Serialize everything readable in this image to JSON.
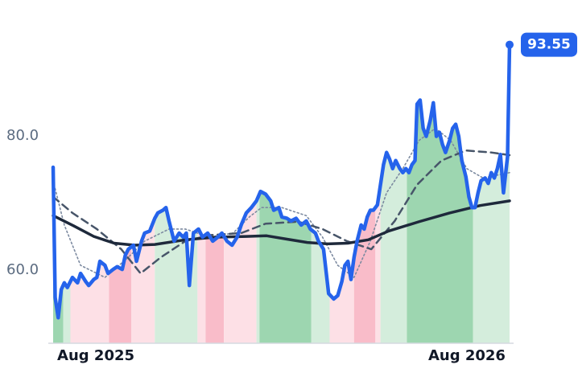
{
  "chart_data": {
    "type": "line",
    "xlim": [
      0,
      449
    ],
    "ylim": [
      49.1,
      100.2
    ],
    "xticks": [
      {
        "value": 42,
        "label": "Aug 2025"
      },
      {
        "value": 407,
        "label": "Aug 2026"
      }
    ],
    "yticks": [
      {
        "value": 60,
        "label": "60.0"
      },
      {
        "value": 80,
        "label": "80.0"
      }
    ],
    "last_value_label": "93.55",
    "bands": [
      {
        "x": [
          0,
          10
        ],
        "color": "#9dd6b0"
      },
      {
        "x": [
          10,
          17
        ],
        "color": "#d4eddc"
      },
      {
        "x": [
          17,
          55
        ],
        "color": "#fde0e6"
      },
      {
        "x": [
          55,
          77
        ],
        "color": "#f9bcc9"
      },
      {
        "x": [
          77,
          100
        ],
        "color": "#fde0e6"
      },
      {
        "x": [
          100,
          142
        ],
        "color": "#d4eddc"
      },
      {
        "x": [
          142,
          150
        ],
        "color": "#fde0e6"
      },
      {
        "x": [
          150,
          168
        ],
        "color": "#f9bcc9"
      },
      {
        "x": [
          168,
          200
        ],
        "color": "#fde0e6"
      },
      {
        "x": [
          200,
          203
        ],
        "color": "#d4eddc"
      },
      {
        "x": [
          203,
          254
        ],
        "color": "#9dd6b0"
      },
      {
        "x": [
          254,
          272
        ],
        "color": "#d4eddc"
      },
      {
        "x": [
          272,
          296
        ],
        "color": "#fde0e6"
      },
      {
        "x": [
          296,
          317
        ],
        "color": "#f9bcc9"
      },
      {
        "x": [
          317,
          322
        ],
        "color": "#fde0e6"
      },
      {
        "x": [
          322,
          348
        ],
        "color": "#d4eddc"
      },
      {
        "x": [
          348,
          413
        ],
        "color": "#9dd6b0"
      },
      {
        "x": [
          413,
          449
        ],
        "color": "#d4eddc"
      }
    ],
    "series": [
      {
        "color": "#2563eb",
        "style": "thick",
        "x": [
          0,
          2,
          5,
          8,
          11,
          14,
          19,
          24,
          27,
          32,
          35,
          40,
          43,
          46,
          51,
          54,
          59,
          63,
          68,
          71,
          74,
          79,
          82,
          87,
          90,
          95,
          100,
          103,
          108,
          111,
          114,
          119,
          124,
          128,
          131,
          134,
          138,
          143,
          147,
          152,
          157,
          162,
          166,
          171,
          176,
          181,
          185,
          190,
          195,
          200,
          204,
          209,
          214,
          217,
          222,
          225,
          230,
          234,
          239,
          244,
          249,
          253,
          258,
          261,
          266,
          271,
          276,
          280,
          284,
          287,
          290,
          293,
          296,
          299,
          303,
          306,
          309,
          312,
          315,
          319,
          322,
          325,
          328,
          331,
          334,
          337,
          341,
          344,
          347,
          350,
          353,
          356,
          358,
          361,
          364,
          367,
          371,
          374,
          377,
          380,
          383,
          386,
          390,
          393,
          396,
          399,
          402,
          406,
          409,
          412,
          415,
          418,
          421,
          425,
          428,
          431,
          434,
          437,
          440,
          443,
          447,
          449
        ],
        "values": [
          75.3,
          55.9,
          52.9,
          57.1,
          58.1,
          57.4,
          58.9,
          58.1,
          59.5,
          58.3,
          57.7,
          58.6,
          58.9,
          61.3,
          60.7,
          59.5,
          60.1,
          60.5,
          60.1,
          62.2,
          63.1,
          63.7,
          61.3,
          64.3,
          65.5,
          65.8,
          67.7,
          68.5,
          68.9,
          69.3,
          67.3,
          64.3,
          65.5,
          64.9,
          65.5,
          57.7,
          65.5,
          66.1,
          64.9,
          65.5,
          64.3,
          64.9,
          65.5,
          64.3,
          63.7,
          64.9,
          66.7,
          68.5,
          69.3,
          70.3,
          71.7,
          71.3,
          70.3,
          68.9,
          69.3,
          67.9,
          67.7,
          67.3,
          67.7,
          66.7,
          67.3,
          66.1,
          65.5,
          64.3,
          63.1,
          56.5,
          55.7,
          56.2,
          58.3,
          60.7,
          61.3,
          58.6,
          61.9,
          64.3,
          66.7,
          66.1,
          67.9,
          68.9,
          68.9,
          69.7,
          72.7,
          75.7,
          77.5,
          76.5,
          75.1,
          76.3,
          75.1,
          74.5,
          75.1,
          74.5,
          75.7,
          76.3,
          84.7,
          85.3,
          81.1,
          79.9,
          82.3,
          84.9,
          79.9,
          80.5,
          78.7,
          77.5,
          79.3,
          81.1,
          81.7,
          79.9,
          76.3,
          73.9,
          70.9,
          69.3,
          69.3,
          71.5,
          73.3,
          73.7,
          72.9,
          74.5,
          73.7,
          75.1,
          77.2,
          71.5,
          76.9,
          93.55
        ]
      },
      {
        "color": "#1e293b",
        "style": "solid",
        "x": [
          0,
          20,
          40,
          60,
          80,
          100,
          130,
          160,
          190,
          210,
          230,
          250,
          270,
          290,
          310,
          330,
          360,
          390,
          420,
          449
        ],
        "values": [
          68.1,
          66.6,
          65.0,
          64.0,
          63.7,
          63.8,
          64.5,
          64.9,
          65.0,
          65.1,
          64.6,
          64.1,
          63.9,
          64.0,
          64.5,
          65.8,
          67.2,
          68.5,
          69.6,
          70.3
        ]
      },
      {
        "color": "#475569",
        "style": "dashed",
        "x": [
          0,
          19,
          43,
          67,
          86,
          106,
          130,
          154,
          185,
          209,
          241,
          265,
          289,
          313,
          336,
          358,
          382,
          406,
          431,
          449
        ],
        "values": [
          70.9,
          68.5,
          66.1,
          63.1,
          59.5,
          61.9,
          64.3,
          65.2,
          65.5,
          66.9,
          67.2,
          66.1,
          64.3,
          63.1,
          67.3,
          72.7,
          76.3,
          77.8,
          77.5,
          77.1
        ]
      },
      {
        "color": "#7c8aa0",
        "style": "dotted",
        "x": [
          0,
          11,
          27,
          51,
          74,
          90,
          114,
          130,
          154,
          177,
          193,
          205,
          225,
          249,
          265,
          280,
          296,
          312,
          328,
          344,
          360,
          376,
          391,
          407,
          423,
          449
        ],
        "values": [
          73.3,
          66.7,
          60.7,
          58.9,
          61.9,
          64.3,
          66.1,
          66.1,
          64.9,
          65.5,
          67.9,
          69.3,
          69.3,
          68.1,
          64.9,
          60.7,
          58.9,
          64.3,
          71.5,
          75.1,
          79.3,
          81.1,
          79.3,
          75.1,
          73.7,
          74.5
        ]
      }
    ]
  }
}
